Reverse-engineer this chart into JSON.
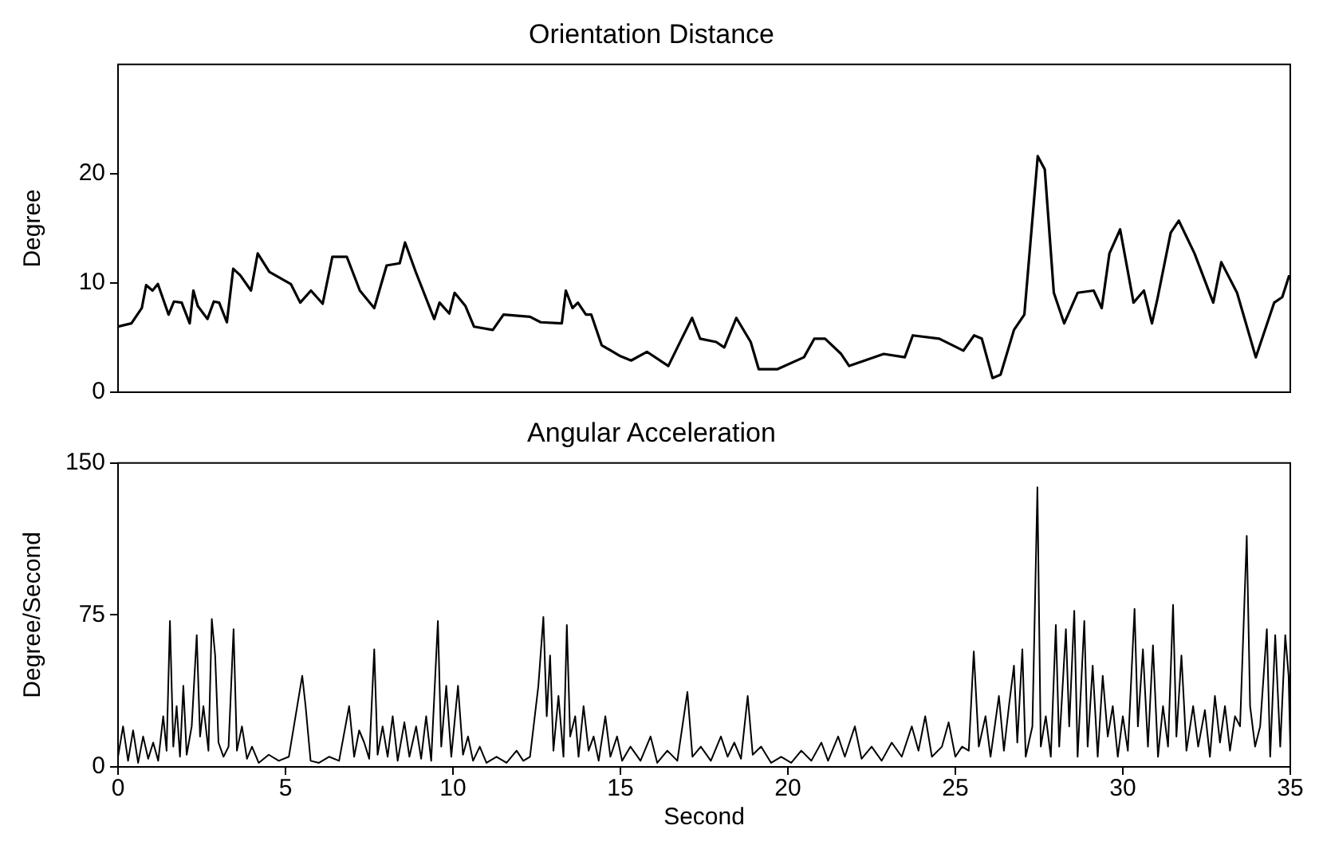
{
  "chart_data": [
    {
      "type": "line",
      "title": "Orientation Distance",
      "ylabel": "Degree",
      "xlim": [
        0,
        35
      ],
      "ylim": [
        0,
        30
      ],
      "yticks": [
        0,
        10,
        20
      ],
      "tick_labels": "y",
      "grid": false,
      "legend": false,
      "marker": "none",
      "line_style": "solid",
      "series": [
        {
          "color": "#000000",
          "x": [
            0,
            0.4,
            0.71,
            0.84,
            1.03,
            1.19,
            1.51,
            1.67,
            1.9,
            2.14,
            2.25,
            2.38,
            2.67,
            2.86,
            3.02,
            3.25,
            3.44,
            3.65,
            3.97,
            4.17,
            4.52,
            5.16,
            5.44,
            5.76,
            6.11,
            6.4,
            6.83,
            7.22,
            7.65,
            8.02,
            8.41,
            8.57,
            8.89,
            9.44,
            9.6,
            9.89,
            10.05,
            10.37,
            10.63,
            11.19,
            11.51,
            12.3,
            12.62,
            13.25,
            13.37,
            13.57,
            13.73,
            13.97,
            14.13,
            14.44,
            15.0,
            15.32,
            15.79,
            16.43,
            16.83,
            17.14,
            17.38,
            17.86,
            18.1,
            18.46,
            18.89,
            19.13,
            19.68,
            20.48,
            20.79,
            21.11,
            21.59,
            21.83,
            22.86,
            23.49,
            23.73,
            24.52,
            25.24,
            25.56,
            25.79,
            26.11,
            26.35,
            26.75,
            27.06,
            27.46,
            27.67,
            27.94,
            28.25,
            28.65,
            29.13,
            29.37,
            29.6,
            29.92,
            30.32,
            30.63,
            30.87,
            31.03,
            31.43,
            31.67,
            32.14,
            32.7,
            32.94,
            33.41,
            33.97,
            34.52,
            34.76,
            34.97
          ],
          "values": [
            6.0,
            6.3,
            7.7,
            9.8,
            9.3,
            9.9,
            7.1,
            8.3,
            8.2,
            6.3,
            9.3,
            7.9,
            6.7,
            8.3,
            8.2,
            6.4,
            11.3,
            10.7,
            9.3,
            12.7,
            11.0,
            9.9,
            8.2,
            9.3,
            8.1,
            12.4,
            12.4,
            9.3,
            7.7,
            11.6,
            11.8,
            13.7,
            11.0,
            6.7,
            8.2,
            7.2,
            9.1,
            7.9,
            6.0,
            5.7,
            7.1,
            6.9,
            6.4,
            6.3,
            9.3,
            7.7,
            8.2,
            7.1,
            7.1,
            4.3,
            3.3,
            2.9,
            3.7,
            2.4,
            4.9,
            6.8,
            4.9,
            4.6,
            4.1,
            6.8,
            4.6,
            2.1,
            2.1,
            3.2,
            4.9,
            4.9,
            3.5,
            2.4,
            3.5,
            3.2,
            5.2,
            4.9,
            3.8,
            5.2,
            4.9,
            1.3,
            1.6,
            5.7,
            7.1,
            21.6,
            20.4,
            9.1,
            6.3,
            9.1,
            9.3,
            7.7,
            12.7,
            14.9,
            8.2,
            9.3,
            6.3,
            8.5,
            14.6,
            15.7,
            12.7,
            8.2,
            11.9,
            9.1,
            3.2,
            8.2,
            8.7,
            10.7
          ]
        }
      ]
    },
    {
      "type": "line",
      "title": "Angular Acceleration",
      "xlabel": "Second",
      "ylabel": "Degree/Second",
      "xlim": [
        0,
        35
      ],
      "xticks": [
        0,
        5,
        10,
        15,
        20,
        25,
        30,
        35
      ],
      "ylim": [
        0,
        150
      ],
      "yticks": [
        0,
        75,
        150
      ],
      "grid": false,
      "legend": false,
      "marker": "none",
      "line_style": "solid",
      "series": [
        {
          "color": "#000000",
          "x": [
            0,
            0.15,
            0.3,
            0.45,
            0.6,
            0.75,
            0.9,
            1.05,
            1.2,
            1.35,
            1.45,
            1.55,
            1.65,
            1.75,
            1.85,
            1.95,
            2.05,
            2.2,
            2.35,
            2.45,
            2.55,
            2.7,
            2.8,
            2.9,
            3.0,
            3.15,
            3.3,
            3.45,
            3.55,
            3.7,
            3.85,
            4.0,
            4.2,
            4.5,
            4.8,
            5.1,
            5.4,
            5.5,
            5.6,
            5.75,
            6.0,
            6.3,
            6.6,
            6.9,
            7.05,
            7.2,
            7.35,
            7.5,
            7.65,
            7.75,
            7.9,
            8.05,
            8.2,
            8.35,
            8.55,
            8.7,
            8.9,
            9.05,
            9.2,
            9.35,
            9.55,
            9.65,
            9.8,
            9.95,
            10.15,
            10.3,
            10.45,
            10.6,
            10.8,
            11.0,
            11.3,
            11.6,
            11.9,
            12.1,
            12.3,
            12.55,
            12.7,
            12.8,
            12.9,
            13.0,
            13.15,
            13.3,
            13.4,
            13.5,
            13.65,
            13.75,
            13.9,
            14.05,
            14.2,
            14.35,
            14.55,
            14.7,
            14.9,
            15.05,
            15.3,
            15.6,
            15.9,
            16.1,
            16.4,
            16.7,
            17.0,
            17.15,
            17.4,
            17.7,
            18.0,
            18.2,
            18.4,
            18.6,
            18.8,
            18.95,
            19.2,
            19.5,
            19.8,
            20.1,
            20.4,
            20.7,
            21.0,
            21.2,
            21.5,
            21.7,
            22.0,
            22.2,
            22.5,
            22.8,
            23.1,
            23.4,
            23.7,
            23.9,
            24.1,
            24.3,
            24.6,
            24.8,
            25.0,
            25.2,
            25.4,
            25.55,
            25.7,
            25.9,
            26.05,
            26.3,
            26.45,
            26.6,
            26.75,
            26.85,
            27.0,
            27.1,
            27.3,
            27.45,
            27.55,
            27.7,
            27.85,
            28.0,
            28.1,
            28.3,
            28.4,
            28.55,
            28.65,
            28.85,
            28.95,
            29.1,
            29.25,
            29.4,
            29.55,
            29.7,
            29.85,
            30.0,
            30.15,
            30.35,
            30.45,
            30.6,
            30.75,
            30.9,
            31.05,
            31.2,
            31.35,
            31.5,
            31.6,
            31.75,
            31.9,
            32.1,
            32.25,
            32.45,
            32.6,
            32.75,
            32.9,
            33.05,
            33.2,
            33.35,
            33.5,
            33.7,
            33.8,
            33.95,
            34.1,
            34.3,
            34.4,
            34.55,
            34.7,
            34.85,
            34.95,
            35.0
          ],
          "values": [
            5,
            20,
            3,
            18,
            2,
            15,
            4,
            12,
            3,
            25,
            8,
            72,
            10,
            30,
            5,
            40,
            6,
            20,
            65,
            15,
            30,
            8,
            73,
            55,
            12,
            5,
            10,
            68,
            8,
            20,
            4,
            10,
            2,
            6,
            3,
            5,
            35,
            45,
            30,
            3,
            2,
            5,
            3,
            30,
            5,
            18,
            12,
            4,
            58,
            6,
            20,
            5,
            25,
            3,
            22,
            5,
            20,
            4,
            25,
            3,
            72,
            10,
            40,
            5,
            40,
            6,
            15,
            3,
            10,
            2,
            5,
            2,
            8,
            3,
            5,
            40,
            74,
            25,
            55,
            8,
            35,
            5,
            70,
            15,
            25,
            5,
            30,
            8,
            15,
            3,
            25,
            5,
            15,
            3,
            10,
            3,
            15,
            2,
            8,
            3,
            37,
            5,
            10,
            3,
            15,
            5,
            12,
            4,
            35,
            6,
            10,
            2,
            5,
            2,
            8,
            3,
            12,
            3,
            15,
            5,
            20,
            4,
            10,
            3,
            12,
            5,
            20,
            8,
            25,
            5,
            10,
            22,
            5,
            10,
            8,
            57,
            10,
            25,
            5,
            35,
            8,
            30,
            50,
            12,
            58,
            5,
            20,
            138,
            10,
            25,
            5,
            70,
            10,
            68,
            20,
            77,
            5,
            72,
            10,
            50,
            5,
            45,
            15,
            30,
            5,
            25,
            8,
            78,
            20,
            58,
            10,
            60,
            5,
            30,
            10,
            80,
            15,
            55,
            8,
            30,
            10,
            28,
            5,
            35,
            12,
            30,
            8,
            25,
            20,
            114,
            30,
            10,
            20,
            68,
            5,
            65,
            10,
            65,
            45,
            10
          ]
        }
      ]
    }
  ]
}
